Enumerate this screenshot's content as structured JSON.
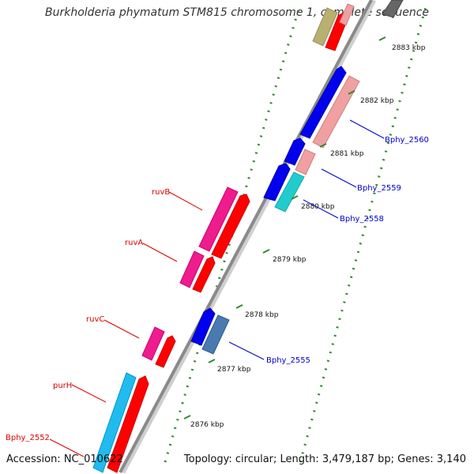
{
  "title": "Burkholderia phymatum STM815 chromosome 1, complete sequence",
  "footer": {
    "accession": "Accession: NC_010622",
    "info": "Topology: circular; Length: 3,479,187 bp; Genes: 3,140"
  },
  "colors": {
    "backbone": "#8a8a8a",
    "ruler_dots": "#2e8b2e",
    "label_red": "#dd0000",
    "label_blue": "#0000cc",
    "gene_red": "#ff0000",
    "gene_blue": "#0000ee",
    "gene_pink": "#f0a0a0",
    "gene_magenta": "#ee1c8c",
    "gene_cyan": "#22cccc",
    "gene_sky": "#22bbee",
    "gene_steel": "#4a7ab0",
    "gene_olive": "#b8b070",
    "gene_gray": "#666666"
  },
  "ruler": {
    "ticks": [
      "2876 kbp",
      "2877 kbp",
      "2878 kbp",
      "2879 kbp",
      "2880 kbp",
      "2881 kbp",
      "2882 kbp",
      "2883 kbp"
    ]
  },
  "gene_labels": {
    "ruvB": "ruvB",
    "ruvA": "ruvA",
    "ruvC": "ruvC",
    "purH": "purH",
    "bphy_2552": "Bphy_2552",
    "bphy_2555": "Bphy_2555",
    "bphy_2558": "Bphy_2558",
    "bphy_2559": "Bphy_2559",
    "bphy_2560": "Bphy_2560"
  }
}
